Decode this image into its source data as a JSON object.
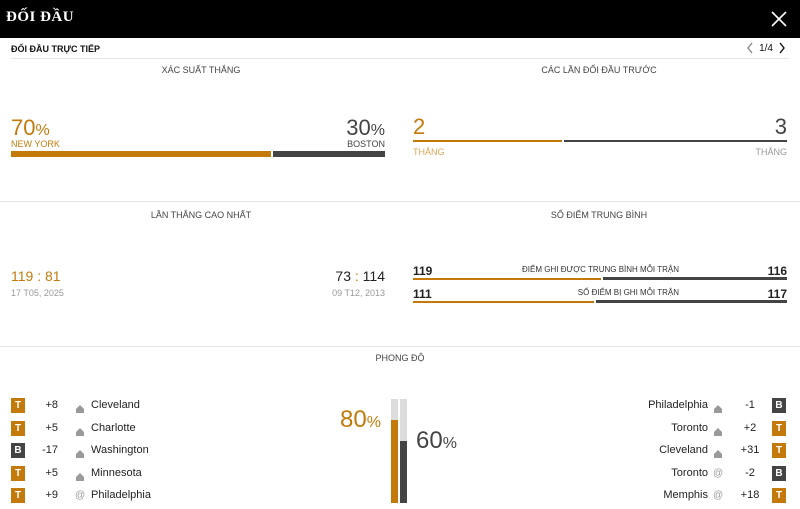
{
  "header": {
    "title": "ĐỐI ĐẦU"
  },
  "subheader": {
    "title": "ĐỐI ĐẦU TRỰC TIẾP",
    "pager": "1/4"
  },
  "win_probability": {
    "title": "XÁC SUẤT THẮNG",
    "left": {
      "value": "70",
      "unit": "%",
      "team": "NEW YORK",
      "share": 0.7
    },
    "right": {
      "value": "30",
      "unit": "%",
      "team": "BOSTON",
      "share": 0.3
    }
  },
  "previous_meetings": {
    "title": "CÁC LẦN ĐỐI ĐẦU TRƯỚC",
    "left": {
      "value": "2",
      "label": "THẮNG",
      "share": 0.4
    },
    "right": {
      "value": "3",
      "label": "THẮNG",
      "share": 0.6
    }
  },
  "biggest_win": {
    "title": "LẦN THẮNG CAO NHẤT",
    "left": {
      "a": "119",
      "sep": ":",
      "b": "81",
      "date": "17 T05, 2025"
    },
    "right": {
      "a": "73",
      "sep": ":",
      "b": "114",
      "date": "09 T12, 2013"
    }
  },
  "average_points": {
    "title": "SỐ ĐIỂM TRUNG BÌNH",
    "rows": [
      {
        "left": "119",
        "label": "ĐIỂM GHI ĐƯỢC TRUNG BÌNH MỖI TRẬN",
        "right": "116",
        "left_share": 0.506
      },
      {
        "left": "111",
        "label": "SỐ ĐIỂM BỊ GHI MỖI TRẬN",
        "right": "117",
        "left_share": 0.487
      }
    ]
  },
  "form": {
    "title": "PHONG ĐỘ",
    "left_pct": "80",
    "right_pct": "60",
    "pct_unit": "%",
    "left_level": 0.8,
    "right_level": 0.6,
    "left": [
      {
        "result": "T",
        "diff": "+8",
        "venue": "home",
        "team": "Cleveland"
      },
      {
        "result": "T",
        "diff": "+5",
        "venue": "home",
        "team": "Charlotte"
      },
      {
        "result": "B",
        "diff": "-17",
        "venue": "home",
        "team": "Washington"
      },
      {
        "result": "T",
        "diff": "+5",
        "venue": "home",
        "team": "Minnesota"
      },
      {
        "result": "T",
        "diff": "+9",
        "venue": "away",
        "team": "Philadelphia"
      }
    ],
    "right": [
      {
        "result": "B",
        "diff": "-1",
        "venue": "home",
        "team": "Philadelphia"
      },
      {
        "result": "T",
        "diff": "+2",
        "venue": "home",
        "team": "Toronto"
      },
      {
        "result": "T",
        "diff": "+31",
        "venue": "home",
        "team": "Cleveland"
      },
      {
        "result": "B",
        "diff": "-2",
        "venue": "away",
        "team": "Toronto"
      },
      {
        "result": "T",
        "diff": "+18",
        "venue": "away",
        "team": "Memphis"
      }
    ]
  },
  "colors": {
    "accent": "#c47a0a",
    "dark": "#444444",
    "track": "#dcdcdc"
  }
}
